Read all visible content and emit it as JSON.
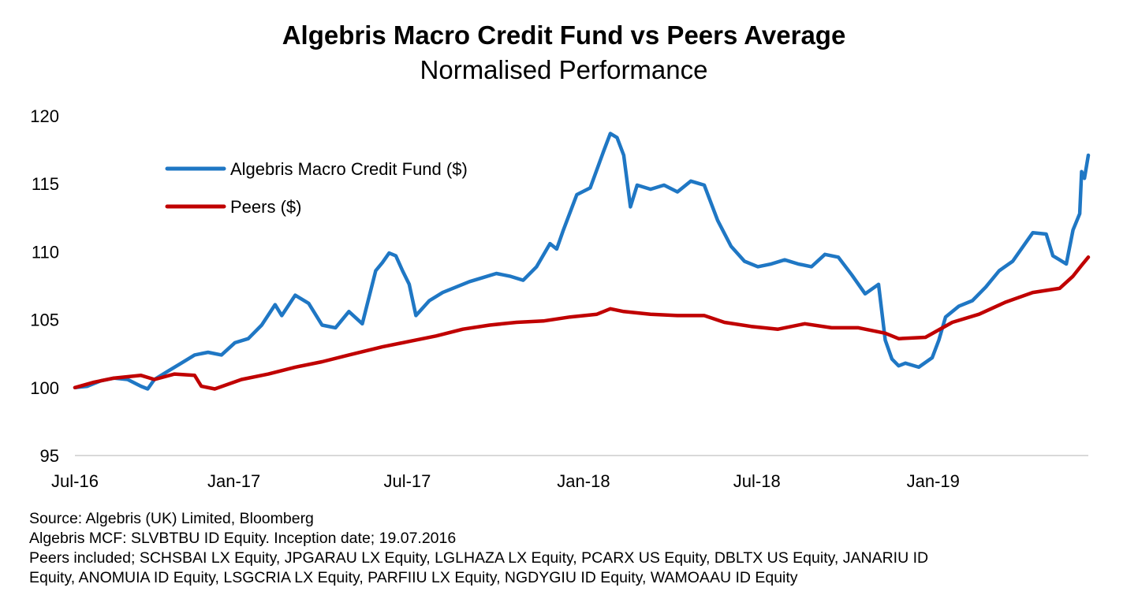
{
  "title": "Algebris Macro Credit Fund vs Peers Average",
  "subtitle": "Normalised Performance",
  "footnotes": [
    "Source: Algebris (UK) Limited, Bloomberg",
    "Algebris MCF: SLVBTBU ID Equity. Inception date; 19.07.2016",
    "Peers included; SCHSBAI LX Equity, JPGARAU LX Equity, LGLHAZA LX Equity, PCARX US Equity, DBLTX US Equity, JANARIU ID",
    "Equity, ANOMUIA ID Equity, LSGCRIA LX Equity, PARFIIU LX Equity, NGDYGIU ID Equity, WAMOAAU ID Equity"
  ],
  "chart_data": {
    "type": "line",
    "title": "Algebris Macro Credit Fund vs Peers Average",
    "subtitle": "Normalised Performance",
    "xlabel": "",
    "ylabel": "",
    "ylim": [
      95,
      120
    ],
    "yticks": [
      95,
      100,
      105,
      110,
      115,
      120
    ],
    "xlim": [
      "2016-07-19",
      "2019-06-12"
    ],
    "xticks": [
      {
        "label": "Jul-16",
        "date": "2016-07-01"
      },
      {
        "label": "Jan-17",
        "date": "2017-01-01"
      },
      {
        "label": "Jul-17",
        "date": "2017-07-01"
      },
      {
        "label": "Jan-18",
        "date": "2018-01-01"
      },
      {
        "label": "Jul-18",
        "date": "2018-07-01"
      },
      {
        "label": "Jan-19",
        "date": "2019-01-01"
      }
    ],
    "grid": false,
    "legend_position": "top-left",
    "series": [
      {
        "name": "Algebris Macro Credit Fund ($)",
        "color": "#1f77c4",
        "points": [
          [
            "2016-07-19",
            100.0
          ],
          [
            "2016-08-01",
            100.1
          ],
          [
            "2016-08-15",
            100.5
          ],
          [
            "2016-08-29",
            100.7
          ],
          [
            "2016-09-12",
            100.6
          ],
          [
            "2016-09-26",
            100.1
          ],
          [
            "2016-10-03",
            99.9
          ],
          [
            "2016-10-10",
            100.6
          ],
          [
            "2016-10-24",
            101.2
          ],
          [
            "2016-11-07",
            101.8
          ],
          [
            "2016-11-21",
            102.4
          ],
          [
            "2016-12-05",
            102.6
          ],
          [
            "2016-12-19",
            102.4
          ],
          [
            "2017-01-02",
            103.3
          ],
          [
            "2017-01-16",
            103.6
          ],
          [
            "2017-01-30",
            104.6
          ],
          [
            "2017-02-13",
            106.1
          ],
          [
            "2017-02-20",
            105.3
          ],
          [
            "2017-03-06",
            106.8
          ],
          [
            "2017-03-20",
            106.2
          ],
          [
            "2017-04-03",
            104.6
          ],
          [
            "2017-04-17",
            104.4
          ],
          [
            "2017-05-01",
            105.6
          ],
          [
            "2017-05-15",
            104.7
          ],
          [
            "2017-05-29",
            108.6
          ],
          [
            "2017-06-05",
            109.2
          ],
          [
            "2017-06-12",
            109.9
          ],
          [
            "2017-06-19",
            109.7
          ],
          [
            "2017-06-26",
            108.6
          ],
          [
            "2017-07-03",
            107.6
          ],
          [
            "2017-07-10",
            105.3
          ],
          [
            "2017-07-24",
            106.4
          ],
          [
            "2017-08-07",
            107.0
          ],
          [
            "2017-08-21",
            107.4
          ],
          [
            "2017-09-04",
            107.8
          ],
          [
            "2017-09-18",
            108.1
          ],
          [
            "2017-10-02",
            108.4
          ],
          [
            "2017-10-16",
            108.2
          ],
          [
            "2017-10-30",
            107.9
          ],
          [
            "2017-11-13",
            108.9
          ],
          [
            "2017-11-27",
            110.6
          ],
          [
            "2017-12-04",
            110.2
          ],
          [
            "2017-12-11",
            111.6
          ],
          [
            "2017-12-25",
            114.2
          ],
          [
            "2018-01-08",
            114.7
          ],
          [
            "2018-01-22",
            117.4
          ],
          [
            "2018-01-29",
            118.7
          ],
          [
            "2018-02-05",
            118.4
          ],
          [
            "2018-02-12",
            117.1
          ],
          [
            "2018-02-19",
            113.3
          ],
          [
            "2018-02-26",
            114.9
          ],
          [
            "2018-03-12",
            114.6
          ],
          [
            "2018-03-26",
            114.9
          ],
          [
            "2018-04-09",
            114.4
          ],
          [
            "2018-04-23",
            115.2
          ],
          [
            "2018-05-07",
            114.9
          ],
          [
            "2018-05-21",
            112.3
          ],
          [
            "2018-06-04",
            110.4
          ],
          [
            "2018-06-18",
            109.3
          ],
          [
            "2018-07-02",
            108.9
          ],
          [
            "2018-07-16",
            109.1
          ],
          [
            "2018-07-30",
            109.4
          ],
          [
            "2018-08-13",
            109.1
          ],
          [
            "2018-08-27",
            108.9
          ],
          [
            "2018-09-10",
            109.8
          ],
          [
            "2018-09-24",
            109.6
          ],
          [
            "2018-10-08",
            108.3
          ],
          [
            "2018-10-22",
            106.9
          ],
          [
            "2018-11-05",
            107.6
          ],
          [
            "2018-11-12",
            103.5
          ],
          [
            "2018-11-19",
            102.1
          ],
          [
            "2018-11-26",
            101.6
          ],
          [
            "2018-12-03",
            101.8
          ],
          [
            "2018-12-17",
            101.5
          ],
          [
            "2018-12-31",
            102.2
          ],
          [
            "2019-01-07",
            103.5
          ],
          [
            "2019-01-14",
            105.2
          ],
          [
            "2019-01-28",
            106.0
          ],
          [
            "2019-02-11",
            106.4
          ],
          [
            "2019-02-25",
            107.4
          ],
          [
            "2019-03-11",
            108.6
          ],
          [
            "2019-03-25",
            109.3
          ],
          [
            "2019-04-08",
            110.7
          ],
          [
            "2019-04-15",
            111.4
          ],
          [
            "2019-04-29",
            111.3
          ],
          [
            "2019-05-06",
            109.7
          ],
          [
            "2019-05-13",
            109.4
          ],
          [
            "2019-05-20",
            109.1
          ],
          [
            "2019-05-27",
            111.6
          ],
          [
            "2019-06-03",
            112.8
          ],
          [
            "2019-06-05",
            115.9
          ],
          [
            "2019-06-08",
            115.4
          ],
          [
            "2019-06-12",
            117.1
          ]
        ]
      },
      {
        "name": "Peers ($)",
        "color": "#c00000",
        "points": [
          [
            "2016-07-19",
            100.0
          ],
          [
            "2016-08-08",
            100.4
          ],
          [
            "2016-08-29",
            100.7
          ],
          [
            "2016-09-26",
            100.9
          ],
          [
            "2016-10-10",
            100.6
          ],
          [
            "2016-10-31",
            101.0
          ],
          [
            "2016-11-21",
            100.9
          ],
          [
            "2016-11-28",
            100.1
          ],
          [
            "2016-12-12",
            99.9
          ],
          [
            "2017-01-09",
            100.6
          ],
          [
            "2017-02-06",
            101.0
          ],
          [
            "2017-03-06",
            101.5
          ],
          [
            "2017-04-03",
            101.9
          ],
          [
            "2017-05-01",
            102.4
          ],
          [
            "2017-06-05",
            103.0
          ],
          [
            "2017-07-03",
            103.4
          ],
          [
            "2017-07-31",
            103.8
          ],
          [
            "2017-08-28",
            104.3
          ],
          [
            "2017-09-25",
            104.6
          ],
          [
            "2017-10-23",
            104.8
          ],
          [
            "2017-11-20",
            104.9
          ],
          [
            "2017-12-18",
            105.2
          ],
          [
            "2018-01-15",
            105.4
          ],
          [
            "2018-01-29",
            105.8
          ],
          [
            "2018-02-12",
            105.6
          ],
          [
            "2018-03-12",
            105.4
          ],
          [
            "2018-04-09",
            105.3
          ],
          [
            "2018-05-07",
            105.3
          ],
          [
            "2018-05-28",
            104.8
          ],
          [
            "2018-06-25",
            104.5
          ],
          [
            "2018-07-23",
            104.3
          ],
          [
            "2018-08-20",
            104.7
          ],
          [
            "2018-09-17",
            104.4
          ],
          [
            "2018-10-15",
            104.4
          ],
          [
            "2018-11-12",
            104.0
          ],
          [
            "2018-11-26",
            103.6
          ],
          [
            "2018-12-24",
            103.7
          ],
          [
            "2019-01-21",
            104.8
          ],
          [
            "2019-02-18",
            105.4
          ],
          [
            "2019-03-18",
            106.3
          ],
          [
            "2019-04-15",
            107.0
          ],
          [
            "2019-05-13",
            107.3
          ],
          [
            "2019-05-27",
            108.2
          ],
          [
            "2019-06-05",
            109.0
          ],
          [
            "2019-06-12",
            109.6
          ]
        ]
      }
    ]
  }
}
